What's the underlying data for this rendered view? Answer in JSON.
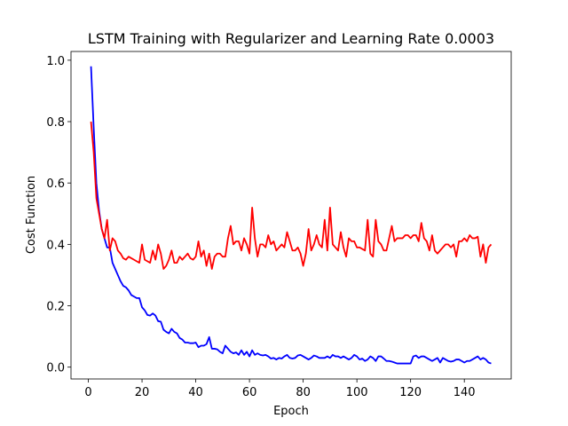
{
  "chart_data": {
    "type": "line",
    "title": "LSTM Training with Regularizer and Learning Rate 0.0003",
    "xlabel": "Epoch",
    "ylabel": "Cost Function",
    "x": [
      1,
      2,
      3,
      4,
      5,
      6,
      7,
      8,
      9,
      10,
      11,
      12,
      13,
      14,
      15,
      16,
      17,
      18,
      19,
      20,
      21,
      22,
      23,
      24,
      25,
      26,
      27,
      28,
      29,
      30,
      31,
      32,
      33,
      34,
      35,
      36,
      37,
      38,
      39,
      40,
      41,
      42,
      43,
      44,
      45,
      46,
      47,
      48,
      49,
      50,
      51,
      52,
      53,
      54,
      55,
      56,
      57,
      58,
      59,
      60,
      61,
      62,
      63,
      64,
      65,
      66,
      67,
      68,
      69,
      70,
      71,
      72,
      73,
      74,
      75,
      76,
      77,
      78,
      79,
      80,
      81,
      82,
      83,
      84,
      85,
      86,
      87,
      88,
      89,
      90,
      91,
      92,
      93,
      94,
      95,
      96,
      97,
      98,
      99,
      100,
      101,
      102,
      103,
      104,
      105,
      106,
      107,
      108,
      109,
      110,
      111,
      112,
      113,
      114,
      115,
      116,
      117,
      118,
      119,
      120,
      121,
      122,
      123,
      124,
      125,
      126,
      127,
      128,
      129,
      130,
      131,
      132,
      133,
      134,
      135,
      136,
      137,
      138,
      139,
      140,
      141,
      142,
      143,
      144,
      145,
      146,
      147,
      148,
      149,
      150
    ],
    "series": [
      {
        "color": "#0000ff",
        "values": [
          0.98,
          0.78,
          0.6,
          0.51,
          0.45,
          0.42,
          0.39,
          0.39,
          0.34,
          0.32,
          0.3,
          0.28,
          0.265,
          0.26,
          0.25,
          0.235,
          0.23,
          0.225,
          0.225,
          0.195,
          0.185,
          0.17,
          0.168,
          0.175,
          0.168,
          0.15,
          0.148,
          0.122,
          0.115,
          0.11,
          0.125,
          0.115,
          0.11,
          0.095,
          0.09,
          0.08,
          0.08,
          0.078,
          0.078,
          0.08,
          0.065,
          0.07,
          0.07,
          0.075,
          0.098,
          0.06,
          0.06,
          0.058,
          0.05,
          0.045,
          0.07,
          0.06,
          0.05,
          0.045,
          0.048,
          0.04,
          0.055,
          0.04,
          0.05,
          0.035,
          0.055,
          0.04,
          0.045,
          0.04,
          0.038,
          0.04,
          0.035,
          0.028,
          0.03,
          0.025,
          0.03,
          0.028,
          0.035,
          0.04,
          0.03,
          0.028,
          0.03,
          0.038,
          0.04,
          0.035,
          0.03,
          0.025,
          0.03,
          0.038,
          0.035,
          0.03,
          0.03,
          0.03,
          0.035,
          0.03,
          0.04,
          0.035,
          0.035,
          0.03,
          0.035,
          0.03,
          0.025,
          0.03,
          0.04,
          0.035,
          0.025,
          0.028,
          0.02,
          0.025,
          0.035,
          0.03,
          0.02,
          0.035,
          0.035,
          0.028,
          0.02,
          0.02,
          0.018,
          0.015,
          0.012,
          0.012,
          0.012,
          0.012,
          0.012,
          0.012,
          0.035,
          0.038,
          0.03,
          0.035,
          0.035,
          0.03,
          0.025,
          0.02,
          0.025,
          0.03,
          0.015,
          0.03,
          0.025,
          0.02,
          0.018,
          0.02,
          0.025,
          0.025,
          0.02,
          0.015,
          0.02,
          0.02,
          0.025,
          0.03,
          0.035,
          0.025,
          0.03,
          0.025,
          0.015,
          0.012
        ]
      },
      {
        "color": "#ff0000",
        "values": [
          0.8,
          0.7,
          0.55,
          0.5,
          0.45,
          0.42,
          0.48,
          0.38,
          0.42,
          0.41,
          0.38,
          0.37,
          0.355,
          0.35,
          0.36,
          0.355,
          0.35,
          0.345,
          0.34,
          0.4,
          0.35,
          0.345,
          0.34,
          0.38,
          0.35,
          0.4,
          0.37,
          0.32,
          0.33,
          0.35,
          0.38,
          0.34,
          0.34,
          0.36,
          0.35,
          0.36,
          0.37,
          0.355,
          0.35,
          0.36,
          0.41,
          0.36,
          0.38,
          0.33,
          0.37,
          0.32,
          0.36,
          0.37,
          0.37,
          0.36,
          0.36,
          0.42,
          0.46,
          0.4,
          0.41,
          0.41,
          0.38,
          0.42,
          0.4,
          0.37,
          0.52,
          0.42,
          0.36,
          0.4,
          0.4,
          0.39,
          0.43,
          0.4,
          0.41,
          0.38,
          0.39,
          0.4,
          0.39,
          0.44,
          0.41,
          0.38,
          0.38,
          0.39,
          0.37,
          0.33,
          0.37,
          0.45,
          0.38,
          0.4,
          0.43,
          0.4,
          0.39,
          0.48,
          0.38,
          0.52,
          0.4,
          0.39,
          0.38,
          0.44,
          0.39,
          0.36,
          0.42,
          0.41,
          0.41,
          0.39,
          0.39,
          0.385,
          0.38,
          0.48,
          0.37,
          0.36,
          0.48,
          0.41,
          0.4,
          0.38,
          0.38,
          0.42,
          0.46,
          0.41,
          0.42,
          0.42,
          0.42,
          0.43,
          0.43,
          0.42,
          0.43,
          0.43,
          0.41,
          0.47,
          0.42,
          0.41,
          0.38,
          0.43,
          0.38,
          0.37,
          0.38,
          0.39,
          0.4,
          0.4,
          0.39,
          0.4,
          0.36,
          0.41,
          0.41,
          0.42,
          0.41,
          0.43,
          0.42,
          0.42,
          0.425,
          0.36,
          0.4,
          0.34,
          0.39,
          0.4
        ]
      }
    ],
    "xlim": [
      -6.45,
      157.45
    ],
    "xticks": [
      0,
      20,
      40,
      60,
      80,
      100,
      120,
      140
    ],
    "ylim": [
      -0.0385,
      1.0285
    ],
    "yticks": [
      {
        "value": 0,
        "label": "0.0"
      },
      0.2,
      0.4,
      0.6,
      0.8,
      {
        "value": 1,
        "label": "1.0"
      }
    ]
  }
}
